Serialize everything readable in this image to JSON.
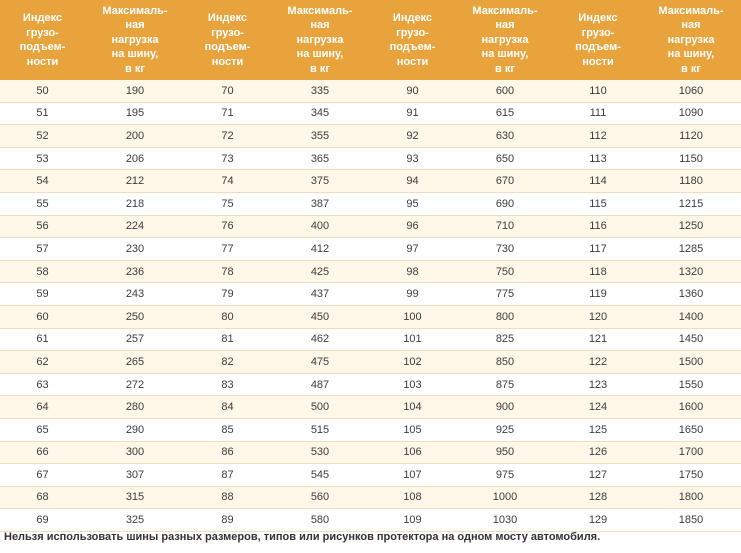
{
  "table": {
    "headers": [
      "Индекс\nгрузо-\nподъем-\nности",
      "Максималь-\nная\nнагрузка\nна шину,\nв кг",
      "Индекс\nгрузо-\nподъем-\nности",
      "Максималь-\nная\nнагрузка\nна шину,\nв кг",
      "Индекс\nгрузо-\nподъем-\nности",
      "Максималь-\nная\nнагрузка\nна шину,\nв кг",
      "Индекс\nгрузо-\nподъем-\nности",
      "Максималь-\nная\nнагрузка\nна шину,\nв кг"
    ],
    "rows": [
      [
        "50",
        "190",
        "70",
        "335",
        "90",
        "600",
        "110",
        "1060"
      ],
      [
        "51",
        "195",
        "71",
        "345",
        "91",
        "615",
        "111",
        "1090"
      ],
      [
        "52",
        "200",
        "72",
        "355",
        "92",
        "630",
        "112",
        "1120"
      ],
      [
        "53",
        "206",
        "73",
        "365",
        "93",
        "650",
        "113",
        "1150"
      ],
      [
        "54",
        "212",
        "74",
        "375",
        "94",
        "670",
        "114",
        "1180"
      ],
      [
        "55",
        "218",
        "75",
        "387",
        "95",
        "690",
        "115",
        "1215"
      ],
      [
        "56",
        "224",
        "76",
        "400",
        "96",
        "710",
        "116",
        "1250"
      ],
      [
        "57",
        "230",
        "77",
        "412",
        "97",
        "730",
        "117",
        "1285"
      ],
      [
        "58",
        "236",
        "78",
        "425",
        "98",
        "750",
        "118",
        "1320"
      ],
      [
        "59",
        "243",
        "79",
        "437",
        "99",
        "775",
        "119",
        "1360"
      ],
      [
        "60",
        "250",
        "80",
        "450",
        "100",
        "800",
        "120",
        "1400"
      ],
      [
        "61",
        "257",
        "81",
        "462",
        "101",
        "825",
        "121",
        "1450"
      ],
      [
        "62",
        "265",
        "82",
        "475",
        "102",
        "850",
        "122",
        "1500"
      ],
      [
        "63",
        "272",
        "83",
        "487",
        "103",
        "875",
        "123",
        "1550"
      ],
      [
        "64",
        "280",
        "84",
        "500",
        "104",
        "900",
        "124",
        "1600"
      ],
      [
        "65",
        "290",
        "85",
        "515",
        "105",
        "925",
        "125",
        "1650"
      ],
      [
        "66",
        "300",
        "86",
        "530",
        "106",
        "950",
        "126",
        "1700"
      ],
      [
        "67",
        "307",
        "87",
        "545",
        "107",
        "975",
        "127",
        "1750"
      ],
      [
        "68",
        "315",
        "88",
        "560",
        "108",
        "1000",
        "128",
        "1800"
      ],
      [
        "69",
        "325",
        "89",
        "580",
        "109",
        "1030",
        "129",
        "1850"
      ]
    ]
  },
  "footnote": "Нельзя использовать шины разных размеров, типов или рисунков протектора на одном мосту автомобиля.",
  "colors": {
    "header_bg": "#e8a33c",
    "odd_row_bg": "#fff7e7",
    "row_divider": "#f1dcbc"
  }
}
